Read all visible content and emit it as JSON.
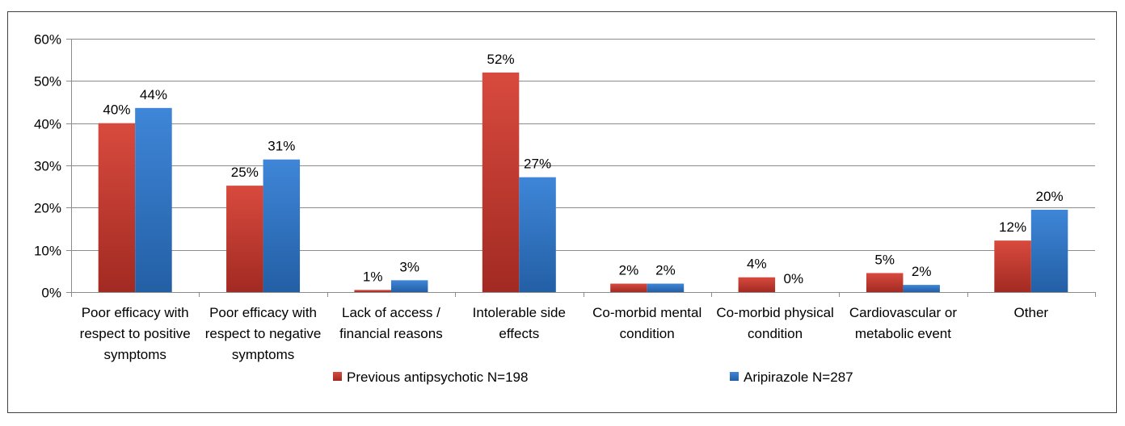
{
  "chart_data": {
    "type": "bar",
    "title": "",
    "xlabel": "",
    "ylabel": "",
    "ylim": [
      0,
      60
    ],
    "yticks": [
      0,
      10,
      20,
      30,
      40,
      50,
      60
    ],
    "ytick_labels": [
      "0%",
      "10%",
      "20%",
      "30%",
      "40%",
      "50%",
      "60%"
    ],
    "grid": true,
    "legend_position": "bottom",
    "categories": [
      [
        "Poor efficacy with",
        "respect to positive",
        "symptoms"
      ],
      [
        "Poor efficacy with",
        "respect to negative",
        "symptoms"
      ],
      [
        "Lack of access /",
        "financial reasons"
      ],
      [
        "Intolerable side",
        "effects"
      ],
      [
        "Co-morbid mental",
        "condition"
      ],
      [
        "Co-morbid physical",
        "condition"
      ],
      [
        "Cardiovascular or",
        "metabolic event"
      ],
      [
        "Other"
      ]
    ],
    "series": [
      {
        "name": "Previous antipsychotic N=198",
        "color": "#c0392b",
        "values": [
          40,
          25.2,
          0.5,
          52,
          2,
          3.5,
          4.5,
          12.2
        ],
        "labels": [
          "40%",
          "25%",
          "1%",
          "52%",
          "2%",
          "4%",
          "5%",
          "12%"
        ]
      },
      {
        "name": "Aripirazole N=287",
        "color": "#2e75c6",
        "values": [
          43.6,
          31.4,
          2.8,
          27.2,
          2,
          0,
          1.7,
          19.5
        ],
        "labels": [
          "44%",
          "31%",
          "3%",
          "27%",
          "2%",
          "0%",
          "2%",
          "20%"
        ]
      }
    ]
  }
}
